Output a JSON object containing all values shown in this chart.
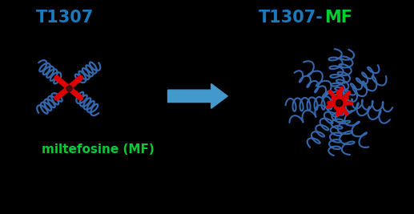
{
  "bg_color": "#000000",
  "title_left": "T1307",
  "title_left_color": "#1a7abf",
  "label_mf": "miltefosine (MF)",
  "label_mf_color": "#00cc33",
  "title_right_T1307": "T1307-",
  "title_right_MF": "MF",
  "title_right_color1": "#1a7abf",
  "title_right_color2": "#00cc33",
  "arrow_color": "#4499cc",
  "arm_color": "#3366aa",
  "center_color": "#dd0000",
  "figsize": [
    5.17,
    2.67
  ],
  "dpi": 100
}
